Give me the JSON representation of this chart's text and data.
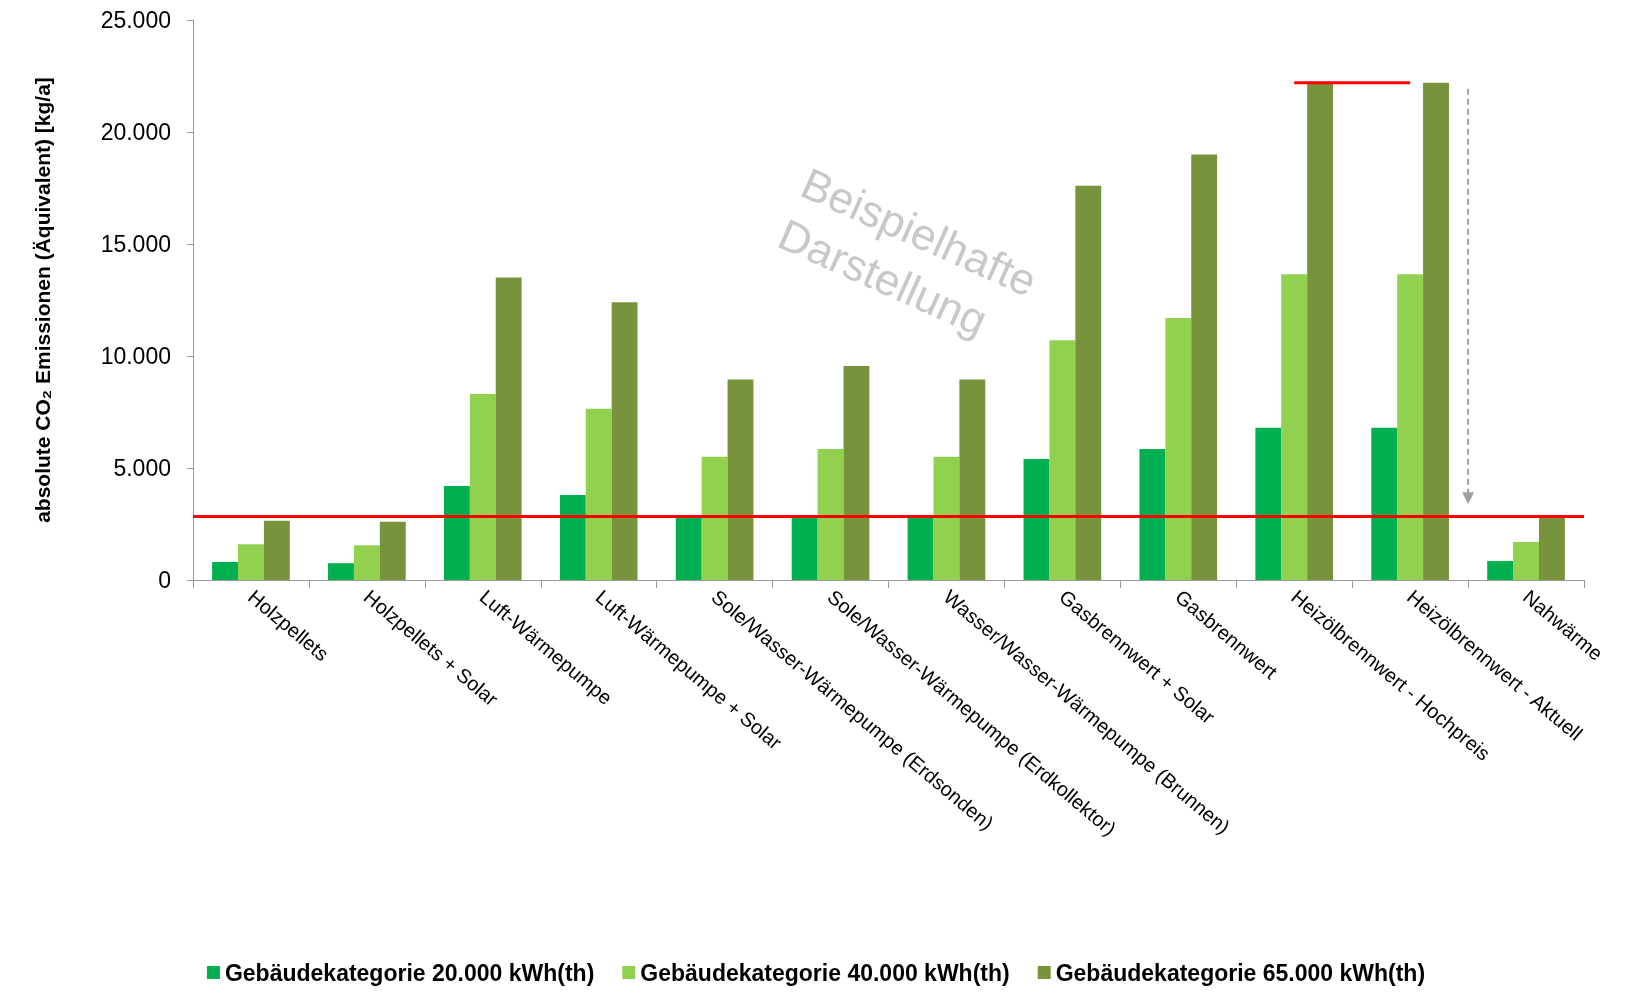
{
  "chart_data": {
    "type": "bar",
    "ylabel": "absolute CO₂ Emissionen (Äquivalent) [kg/a]",
    "categories": [
      "Holzpellets",
      "Holzpellets + Solar",
      "Luft-Wärmepumpe",
      "Luft-Wärmepumpe + Solar",
      "Sole/Wasser-Wärmepumpe (Erdsonden)",
      "Sole/Wasser-Wärmepumpe (Erdkollektor)",
      "Wasser/Wasser-Wärmepumpe (Brunnen)",
      "Gasbrennwert + Solar",
      "Gasbrennwert",
      "Heizölbrennwert - Hochpreis",
      "Heizölbrennwert - Aktuell",
      "Nahwärme"
    ],
    "series": [
      {
        "name": "Gebäudekategorie 20.000 kWh(th)",
        "color": "#00b050",
        "values": [
          800,
          750,
          4200,
          3800,
          2900,
          2900,
          2900,
          5400,
          5850,
          6800,
          6800,
          850
        ]
      },
      {
        "name": "Gebäudekategorie 40.000 kWh(th)",
        "color": "#92d050",
        "values": [
          1600,
          1550,
          8300,
          7650,
          5500,
          5850,
          5500,
          10700,
          11700,
          13650,
          13650,
          1700
        ]
      },
      {
        "name": "Gebäudekategorie 65.000 kWh(th)",
        "color": "#77933c",
        "values": [
          2650,
          2600,
          13500,
          12400,
          8950,
          9550,
          8950,
          17600,
          19000,
          22200,
          22200,
          2800
        ]
      },
      {
        "type": "line",
        "color": "#ff0000",
        "x": [
          "Heizölbrennwert - Hochpreis",
          "Heizölbrennwert - Aktuell"
        ],
        "values": [
          22200,
          22200
        ]
      }
    ],
    "ref_lines": [
      {
        "axis": "y",
        "value": 2850,
        "color": "#ff0000"
      }
    ],
    "annotations": [
      "Beispielhafte Darstellung"
    ],
    "ylim": [
      0,
      25000
    ],
    "yticks": [
      0,
      {
        "value": 5000,
        "label": "5.000"
      },
      {
        "value": 10000,
        "label": "10.000"
      },
      {
        "value": 15000,
        "label": "15.000"
      },
      {
        "value": 20000,
        "label": "20.000"
      },
      {
        "value": 25000,
        "label": "25.000"
      }
    ],
    "grid": false,
    "legend": "bottom"
  }
}
